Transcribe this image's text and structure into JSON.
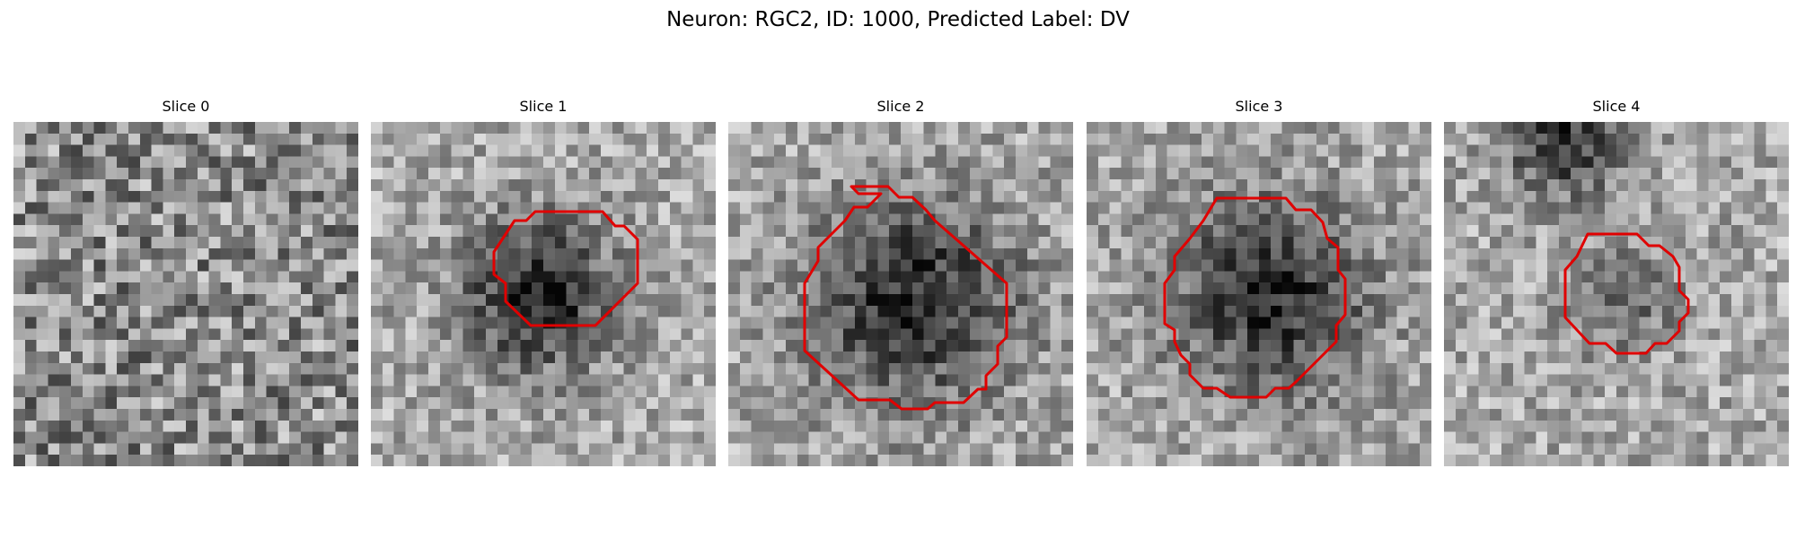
{
  "figure": {
    "title": "Neuron: RGC2, ID: 1000, Predicted Label: DV",
    "contour_color": "#e00000",
    "slices": [
      {
        "label": "Slice 0",
        "has_contour": false,
        "dark_blob": null,
        "top_blob": null
      },
      {
        "label": "Slice 1",
        "has_contour": true,
        "dark_blob": {
          "cx": 14,
          "cy": 14.5,
          "r": 6,
          "strength": 0.55
        },
        "top_blob": null
      },
      {
        "label": "Slice 2",
        "has_contour": true,
        "dark_blob": {
          "cx": 15.5,
          "cy": 15,
          "r": 8.5,
          "strength": 0.5
        },
        "top_blob": null
      },
      {
        "label": "Slice 3",
        "has_contour": true,
        "dark_blob": {
          "cx": 15.5,
          "cy": 14.5,
          "r": 8,
          "strength": 0.5
        },
        "top_blob": null
      },
      {
        "label": "Slice 4",
        "has_contour": true,
        "dark_blob": {
          "cx": 15,
          "cy": 15,
          "r": 4.5,
          "strength": 0.25
        },
        "top_blob": {
          "cx": 10,
          "cy": 1,
          "r": 5,
          "strength": 0.45
        }
      }
    ]
  }
}
